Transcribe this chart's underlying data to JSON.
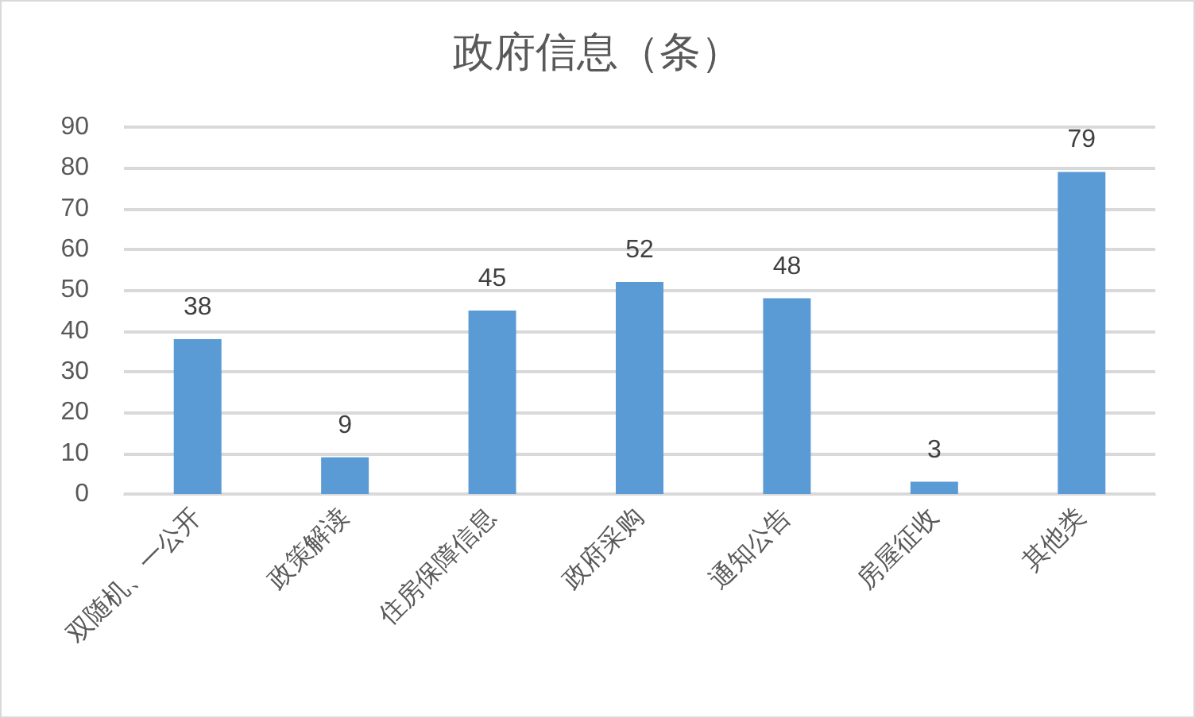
{
  "chart_data": {
    "type": "bar",
    "title": "政府信息（条）",
    "categories": [
      "双随机、一公开",
      "政策解读",
      "住房保障信息",
      "政府采购",
      "通知公告",
      "房屋征收",
      "其他类"
    ],
    "values": [
      38,
      9,
      45,
      52,
      48,
      3,
      79
    ],
    "color": "#5b9bd5",
    "ylim": [
      0,
      90
    ],
    "yticks": [
      0,
      10,
      20,
      30,
      40,
      50,
      60,
      70,
      80,
      90
    ],
    "grid": "y",
    "data_labels": true
  }
}
